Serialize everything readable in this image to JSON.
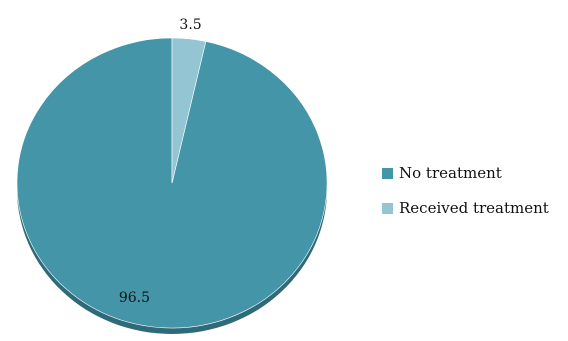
{
  "chart_data": {
    "type": "pie",
    "categories": [
      "No treatment",
      "Received treatment"
    ],
    "values": [
      96.5,
      3.5
    ],
    "data_labels": [
      "96.5",
      "3.5"
    ],
    "colors": [
      "#4495a8",
      "#93c5d2"
    ],
    "shadow_color": "#2f6a78",
    "legend_position": "right"
  }
}
